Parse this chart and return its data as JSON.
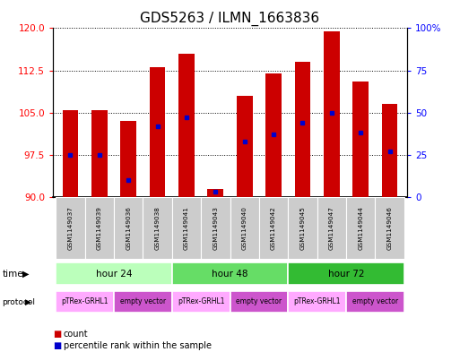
{
  "title": "GDS5263 / ILMN_1663836",
  "samples": [
    "GSM1149037",
    "GSM1149039",
    "GSM1149036",
    "GSM1149038",
    "GSM1149041",
    "GSM1149043",
    "GSM1149040",
    "GSM1149042",
    "GSM1149045",
    "GSM1149047",
    "GSM1149044",
    "GSM1149046"
  ],
  "bar_tops": [
    105.5,
    105.5,
    103.5,
    113.0,
    115.5,
    91.5,
    108.0,
    112.0,
    114.0,
    119.5,
    110.5,
    106.5
  ],
  "bar_bottom": 90,
  "percentile_values": [
    25,
    25,
    10,
    42,
    47,
    3,
    33,
    37,
    44,
    50,
    38,
    27
  ],
  "ylim_left": [
    90,
    120
  ],
  "ylim_right": [
    0,
    100
  ],
  "left_yticks": [
    90,
    97.5,
    105,
    112.5,
    120
  ],
  "right_yticks": [
    0,
    25,
    50,
    75,
    100
  ],
  "right_yticklabels": [
    "0",
    "25",
    "50",
    "75",
    "100%"
  ],
  "bar_color": "#cc0000",
  "dot_color": "#0000cc",
  "time_groups": [
    {
      "label": "hour 24",
      "start": 0,
      "end": 4
    },
    {
      "label": "hour 48",
      "start": 4,
      "end": 8
    },
    {
      "label": "hour 72",
      "start": 8,
      "end": 12
    }
  ],
  "time_colors": [
    "#bbffbb",
    "#66dd66",
    "#33bb33"
  ],
  "protocol_groups": [
    {
      "label": "pTRex-GRHL1",
      "start": 0,
      "end": 2
    },
    {
      "label": "empty vector",
      "start": 2,
      "end": 4
    },
    {
      "label": "pTRex-GRHL1",
      "start": 4,
      "end": 6
    },
    {
      "label": "empty vector",
      "start": 6,
      "end": 8
    },
    {
      "label": "pTRex-GRHL1",
      "start": 8,
      "end": 10
    },
    {
      "label": "empty vector",
      "start": 10,
      "end": 12
    }
  ],
  "proto_color_grhl1": "#ffaaff",
  "proto_color_empty": "#cc55cc",
  "sample_bg_color": "#cccccc",
  "background_color": "#ffffff",
  "title_fontsize": 11,
  "bar_width": 0.55
}
